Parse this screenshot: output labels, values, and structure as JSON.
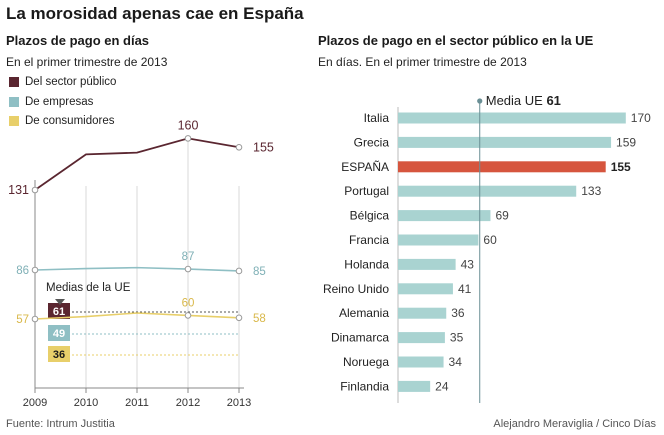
{
  "title": "La morosidad apenas cae en España",
  "colors": {
    "public": "#5a2630",
    "companies": "#8fbfc4",
    "consumers": "#e8cf6a",
    "bar": "#a9d3d1",
    "bar_highlight": "#d6553e",
    "axis": "#888888"
  },
  "left_chart": {
    "title": "Plazos de pago en días",
    "subtitle": "En el primer trimestre de 2013",
    "legend": [
      {
        "label": "Del sector público",
        "color": "#5a2630"
      },
      {
        "label": "De empresas",
        "color": "#8fbfc4"
      },
      {
        "label": "De consumidores",
        "color": "#e8cf6a"
      }
    ],
    "eu_label": "Medias de la UE"
  },
  "right_chart": {
    "title": "Plazos de pago en el sector público en la UE",
    "subtitle": "En días. En el primer trimestre de 2013",
    "media_label": "Media UE",
    "media_value": "61"
  },
  "chart_data": [
    {
      "type": "line",
      "title": "Plazos de pago en días",
      "x": [
        "2009",
        "2010",
        "2011",
        "2012",
        "2013"
      ],
      "ylim": [
        0,
        180
      ],
      "series": [
        {
          "name": "Del sector público",
          "values": [
            131,
            151,
            152,
            160,
            155
          ],
          "labeled": [
            0,
            3,
            4
          ]
        },
        {
          "name": "De empresas",
          "values": [
            86,
            87.5,
            88.5,
            87,
            85
          ],
          "labeled": [
            0,
            3,
            4
          ]
        },
        {
          "name": "De consumidores",
          "values": [
            57,
            59,
            62,
            60,
            58
          ],
          "labeled": [
            0,
            3,
            4
          ]
        }
      ],
      "eu_means": [
        {
          "name": "Del sector público",
          "value": 61
        },
        {
          "name": "De empresas",
          "value": 49
        },
        {
          "name": "De consumidores",
          "value": 36
        }
      ]
    },
    {
      "type": "bar",
      "orientation": "horizontal",
      "title": "Plazos de pago en el sector público en la UE",
      "categories": [
        "Italia",
        "Grecia",
        "ESPAÑA",
        "Portugal",
        "Bélgica",
        "Francia",
        "Holanda",
        "Reino Unido",
        "Alemania",
        "Dinamarca",
        "Noruega",
        "Finlandia"
      ],
      "values": [
        170,
        159,
        155,
        133,
        69,
        60,
        43,
        41,
        36,
        35,
        34,
        24
      ],
      "highlight": "ESPAÑA",
      "reference_line": 61
    }
  ],
  "footer": {
    "source": "Fuente: Intrum Justitia",
    "credit": "Alejandro Meraviglia / Cinco Días"
  }
}
